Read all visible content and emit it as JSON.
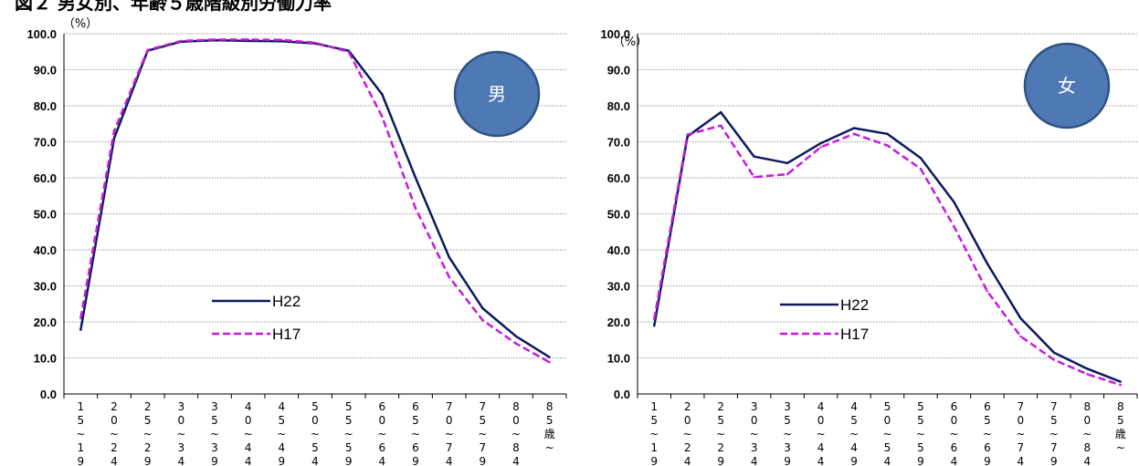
{
  "figure": {
    "title": "図２ 男女別、年齢５歳階級別労働力率"
  },
  "colors": {
    "h22": "#0d1a5c",
    "h17": "#c61bd8",
    "badge_fill": "#4f79b4",
    "badge_stroke": "#2e5283",
    "grid": "#9a9a9a"
  },
  "chart_data": [
    {
      "type": "line",
      "badge": "男",
      "ylabel": "（%）",
      "ylim": [
        0,
        100
      ],
      "yticks": [
        "0.0",
        "10.0",
        "20.0",
        "30.0",
        "40.0",
        "50.0",
        "60.0",
        "70.0",
        "80.0",
        "90.0",
        "100.0"
      ],
      "categories": [
        "15~19",
        "20~24",
        "25~29",
        "30~34",
        "35~39",
        "40~44",
        "45~49",
        "50~54",
        "55~59",
        "60~64",
        "65~69",
        "70~74",
        "75~79",
        "80~84",
        "85歳~"
      ],
      "category_labels": [
        [
          "1",
          "5",
          "~",
          "1",
          "9"
        ],
        [
          "2",
          "0",
          "~",
          "2",
          "4"
        ],
        [
          "2",
          "5",
          "~",
          "2",
          "9"
        ],
        [
          "3",
          "0",
          "~",
          "3",
          "4"
        ],
        [
          "3",
          "5",
          "~",
          "3",
          "9"
        ],
        [
          "4",
          "0",
          "~",
          "4",
          "4"
        ],
        [
          "4",
          "5",
          "~",
          "4",
          "9"
        ],
        [
          "5",
          "0",
          "~",
          "5",
          "4"
        ],
        [
          "5",
          "5",
          "~",
          "5",
          "9"
        ],
        [
          "6",
          "0",
          "~",
          "6",
          "4"
        ],
        [
          "6",
          "5",
          "~",
          "6",
          "9"
        ],
        [
          "7",
          "0",
          "~",
          "7",
          "4"
        ],
        [
          "7",
          "5",
          "~",
          "7",
          "9"
        ],
        [
          "8",
          "0",
          "~",
          "8",
          "4"
        ],
        [
          "8",
          "5",
          "歳",
          "~"
        ]
      ],
      "legend_position": "bottom-left",
      "grid": true,
      "series": [
        {
          "name": "H22",
          "style": "solid",
          "values": [
            17.8,
            71.0,
            95.3,
            97.8,
            98.2,
            98.0,
            97.9,
            97.3,
            95.3,
            83.2,
            60.0,
            38.0,
            23.8,
            16.0,
            10.2
          ]
        },
        {
          "name": "H17",
          "style": "dashed",
          "values": [
            21.0,
            73.0,
            95.5,
            98.0,
            98.4,
            98.4,
            98.3,
            97.5,
            95.0,
            77.0,
            51.5,
            32.5,
            20.5,
            14.0,
            8.8
          ]
        }
      ]
    },
    {
      "type": "line",
      "badge": "女",
      "ylabel": "（%）",
      "ylim": [
        0,
        100
      ],
      "yticks": [
        "0.0",
        "10.0",
        "20.0",
        "30.0",
        "40.0",
        "50.0",
        "60.0",
        "70.0",
        "80.0",
        "90.0",
        "100.0"
      ],
      "categories": [
        "15~19",
        "20~24",
        "25~29",
        "30~34",
        "35~39",
        "40~44",
        "45~49",
        "50~54",
        "55~59",
        "60~64",
        "65~69",
        "70~74",
        "75~79",
        "80~84",
        "85歳~"
      ],
      "category_labels": [
        [
          "1",
          "5",
          "~",
          "1",
          "9"
        ],
        [
          "2",
          "0",
          "~",
          "2",
          "4"
        ],
        [
          "2",
          "5",
          "~",
          "2",
          "9"
        ],
        [
          "3",
          "0",
          "~",
          "3",
          "4"
        ],
        [
          "3",
          "5",
          "~",
          "3",
          "9"
        ],
        [
          "4",
          "0",
          "~",
          "4",
          "4"
        ],
        [
          "4",
          "5",
          "~",
          "4",
          "9"
        ],
        [
          "5",
          "0",
          "~",
          "5",
          "4"
        ],
        [
          "5",
          "5",
          "~",
          "5",
          "9"
        ],
        [
          "6",
          "0",
          "~",
          "6",
          "4"
        ],
        [
          "6",
          "5",
          "~",
          "6",
          "9"
        ],
        [
          "7",
          "0",
          "~",
          "7",
          "4"
        ],
        [
          "7",
          "5",
          "~",
          "7",
          "9"
        ],
        [
          "8",
          "0",
          "~",
          "8",
          "4"
        ],
        [
          "8",
          "5",
          "歳",
          "~"
        ]
      ],
      "legend_position": "bottom-left",
      "grid": true,
      "series": [
        {
          "name": "H22",
          "style": "solid",
          "values": [
            18.9,
            71.5,
            78.2,
            65.9,
            64.1,
            69.6,
            73.8,
            72.2,
            65.5,
            53.3,
            36.2,
            21.0,
            11.5,
            7.0,
            3.4
          ]
        },
        {
          "name": "H17",
          "style": "dashed",
          "values": [
            20.8,
            72.0,
            74.5,
            60.2,
            61.0,
            68.5,
            72.2,
            69.0,
            62.5,
            46.5,
            28.5,
            16.0,
            9.5,
            5.5,
            2.5
          ]
        }
      ]
    }
  ]
}
